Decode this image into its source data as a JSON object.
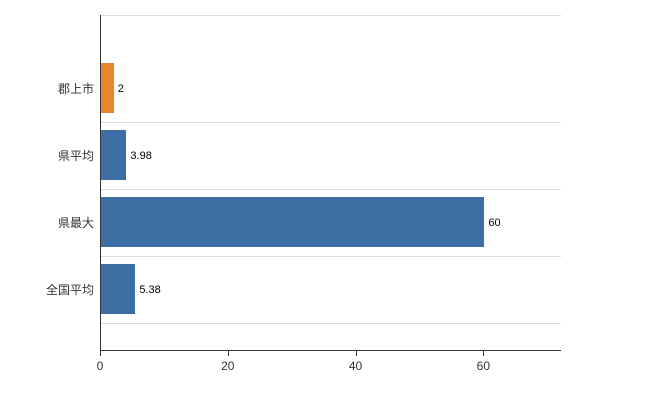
{
  "chart_data": {
    "type": "bar",
    "orientation": "horizontal",
    "title": "",
    "xlabel": "",
    "ylabel": "",
    "categories": [
      "郡上市",
      "県平均",
      "県最大",
      "全国平均"
    ],
    "values": [
      2,
      3.98,
      60,
      5.38
    ],
    "value_labels": [
      "2",
      "3.98",
      "60",
      "5.38"
    ],
    "bar_colors": [
      "#e8862d",
      "#3d6fa5",
      "#3d6fa5",
      "#3d6fa5"
    ],
    "xlim": [
      0,
      72
    ],
    "x_ticks": [
      "0",
      "20",
      "40",
      "60"
    ],
    "x_tick_values": [
      0,
      20,
      40,
      60
    ],
    "grid": "horizontal-faint",
    "legend": "none"
  },
  "colors": {
    "bar_blue": "#3d6fa5",
    "bar_orange": "#e8862d",
    "axis": "#333333",
    "gridline": "#dcdcdc",
    "background": "#ffffff"
  }
}
